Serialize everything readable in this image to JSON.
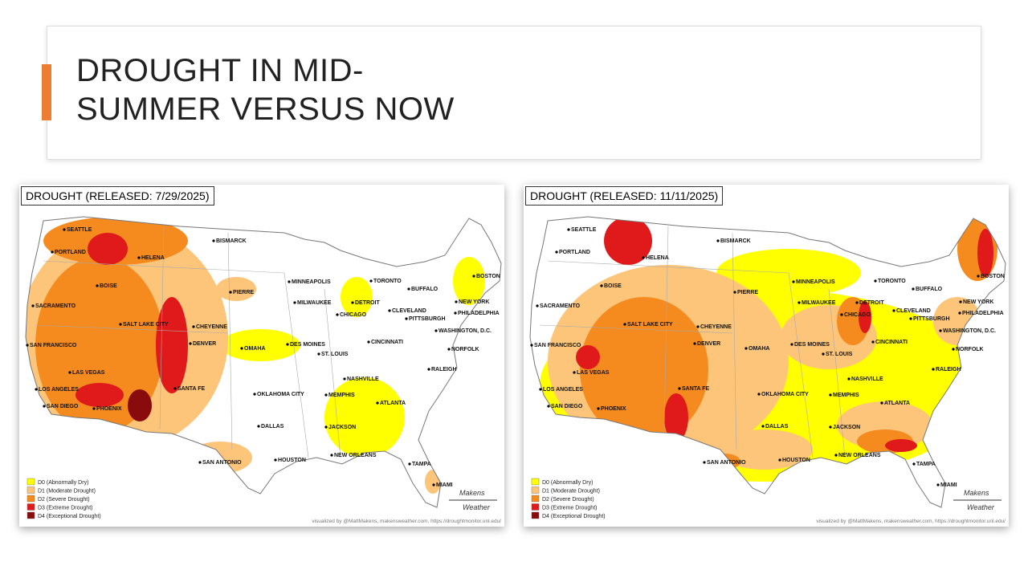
{
  "title_lines": [
    "DROUGHT IN MID-",
    "SUMMER VERSUS NOW"
  ],
  "maps": [
    {
      "label": "DROUGHT (RELEASED: 7/29/2025)"
    },
    {
      "label": "DROUGHT (RELEASED: 11/11/2025)"
    }
  ],
  "cities": [
    "SEATTLE",
    "PORTLAND",
    "HELENA",
    "BISMARCK",
    "BOISE",
    "PIERRE",
    "MINNEAPOLIS",
    "TORONTO",
    "BUFFALO",
    "BOSTON",
    "DETROIT",
    "MILWAUKEE",
    "NEW YORK",
    "CLEVELAND",
    "SACRAMENTO",
    "SALT LAKE CITY",
    "CHEYENNE",
    "CHICAGO",
    "OMAHA",
    "DES MOINES",
    "PITTSBURGH",
    "PHILADELPHIA",
    "WASHINGTON, D.C.",
    "SAN FRANCISCO",
    "DENVER",
    "ST. LOUIS",
    "CINCINNATI",
    "NORFOLK",
    "LAS VEGAS",
    "RALEIGH",
    "NASHVILLE",
    "LOS ANGELES",
    "SANTA FE",
    "OKLAHOMA CITY",
    "MEMPHIS",
    "ATLANTA",
    "SAN DIEGO",
    "PHOENIX",
    "JACKSON",
    "DALLAS",
    "NEW ORLEANS",
    "HOUSTON",
    "SAN ANTONIO",
    "TAMPA",
    "MIAMI"
  ],
  "legend": [
    {
      "label": "D0 (Abnormally Dry)",
      "color": "#ffff00"
    },
    {
      "label": "D1 (Moderate Drought)",
      "color": "#fcc57a"
    },
    {
      "label": "D2 (Severe Drought)",
      "color": "#f58a1f"
    },
    {
      "label": "D3 (Extreme Drought)",
      "color": "#e0191b"
    },
    {
      "label": "D4 (Exceptional Drought)",
      "color": "#8a0b0b"
    }
  ],
  "credit": "visualized by @MattMakens, makensweather.com, https://droughtmonitor.unl.edu/",
  "logo": [
    "Makens",
    "Weather"
  ]
}
